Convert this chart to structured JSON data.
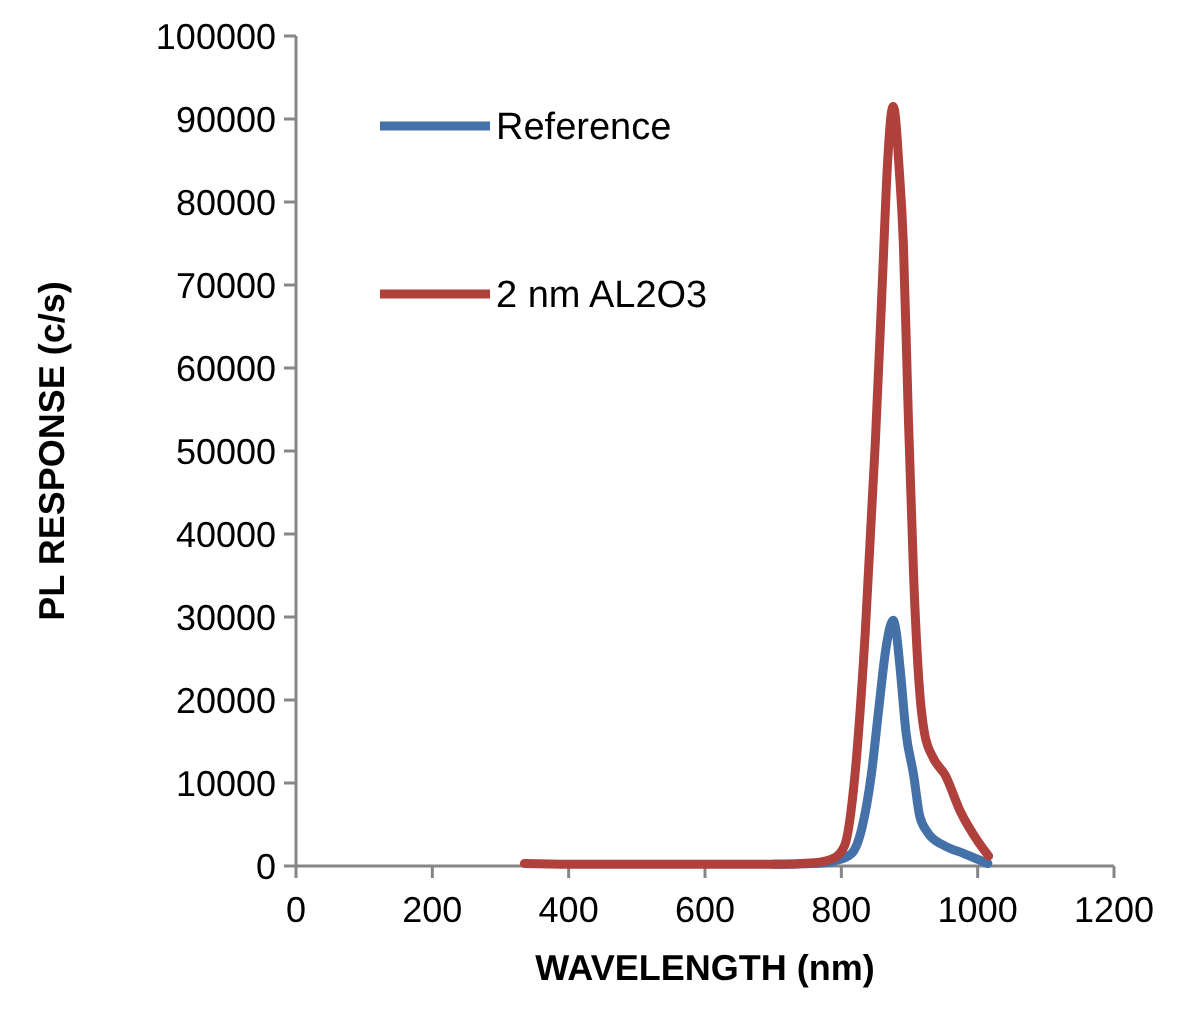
{
  "chart_data": {
    "type": "line",
    "xlabel": "WAVELENGTH (nm)",
    "ylabel": "PL RESPONSE (c/s)",
    "xlim": [
      0,
      1200
    ],
    "xticks": [
      0,
      200,
      400,
      600,
      800,
      1000,
      1200
    ],
    "ylim": [
      0,
      100000
    ],
    "yticks": [
      0,
      10000,
      20000,
      30000,
      40000,
      50000,
      60000,
      70000,
      80000,
      90000,
      100000
    ],
    "legend": "top left",
    "marker": "none",
    "grid": false,
    "series": [
      {
        "name": "Reference",
        "color": "#4472a8",
        "x": [
          700,
          760,
          790,
          815,
          830,
          844,
          855,
          865,
          872,
          876,
          880,
          886,
          895,
          906,
          915,
          927,
          950,
          980,
          1015
        ],
        "values": [
          200,
          300,
          600,
          1500,
          4500,
          11000,
          19000,
          26000,
          29000,
          29600,
          28500,
          24000,
          16000,
          11000,
          6000,
          4000,
          2500,
          1500,
          300
        ]
      },
      {
        "name": "2 nm AL2O3",
        "color": "#b0403c",
        "x": [
          335,
          400,
          500,
          600,
          700,
          760,
          790,
          805,
          820,
          835,
          850,
          860,
          868,
          873,
          876,
          879,
          884,
          891,
          898,
          906,
          914,
          922,
          935,
          952,
          975,
          1000,
          1016
        ],
        "values": [
          300,
          200,
          200,
          200,
          200,
          400,
          1000,
          2500,
          11000,
          28000,
          51300,
          70000,
          85000,
          90500,
          91500,
          90500,
          85000,
          75000,
          55000,
          35000,
          22000,
          16000,
          13000,
          11000,
          6500,
          3000,
          1200
        ]
      }
    ]
  }
}
